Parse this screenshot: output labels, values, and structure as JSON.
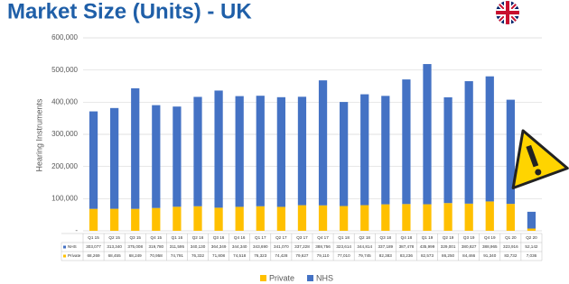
{
  "chart_data": {
    "type": "stacked-bar",
    "title": "Market Size (Units) - UK",
    "y_label": "Hearing Instruments",
    "categories": [
      "Q1 15",
      "Q2 15",
      "Q3 15",
      "Q4 15",
      "Q1 16",
      "Q2 16",
      "Q3 16",
      "Q4 16",
      "Q1 17",
      "Q2 17",
      "Q3 17",
      "Q4 17",
      "Q1 18",
      "Q2 18",
      "Q3 18",
      "Q4 18",
      "Q1 19",
      "Q2 19",
      "Q3 19",
      "Q4 19",
      "Q1 20",
      "Q2 20"
    ],
    "series": [
      {
        "name": "Private",
        "color": "#ffc000",
        "values": [
          68269,
          68455,
          68249,
          70958,
          74791,
          76332,
          71808,
          74518,
          76323,
          74428,
          79627,
          79110,
          77010,
          79745,
          82383,
          83236,
          82573,
          86250,
          84466,
          91340,
          83732,
          7036
        ],
        "value_labels": [
          "68,269",
          "68,455",
          "68,249",
          "70,958",
          "74,791",
          "76,332",
          "71,808",
          "74,518",
          "76,323",
          "74,428",
          "79,627",
          "79,110",
          "77,010",
          "79,745",
          "82,383",
          "83,236",
          "82,573",
          "86,250",
          "84,466",
          "91,340",
          "83,732",
          "7,036"
        ]
      },
      {
        "name": "NHS",
        "color": "#4472c4",
        "values": [
          303077,
          313340,
          375008,
          319780,
          311595,
          340130,
          364349,
          344340,
          343690,
          341070,
          337228,
          388756,
          323614,
          344814,
          337189,
          387478,
          435999,
          329001,
          380827,
          388965,
          323916,
          52142
        ],
        "value_labels": [
          "303,077",
          "313,340",
          "375,008",
          "319,780",
          "311,595",
          "340,130",
          "364,349",
          "344,340",
          "343,690",
          "341,070",
          "337,228",
          "388,756",
          "323,614",
          "344,814",
          "337,189",
          "387,478",
          "435,999",
          "329,001",
          "380,827",
          "388,965",
          "323,916",
          "52,142"
        ]
      }
    ],
    "ylim": [
      0,
      600000
    ],
    "yticks": [
      {
        "value": 0,
        "label": "-"
      },
      {
        "value": 100000,
        "label": "100,000"
      },
      {
        "value": 200000,
        "label": "200,000"
      },
      {
        "value": 300000,
        "label": "300,000"
      },
      {
        "value": 400000,
        "label": "400,000"
      },
      {
        "value": 500000,
        "label": "500,000"
      },
      {
        "value": 600000,
        "label": "600,000"
      }
    ],
    "grid": true
  }
}
